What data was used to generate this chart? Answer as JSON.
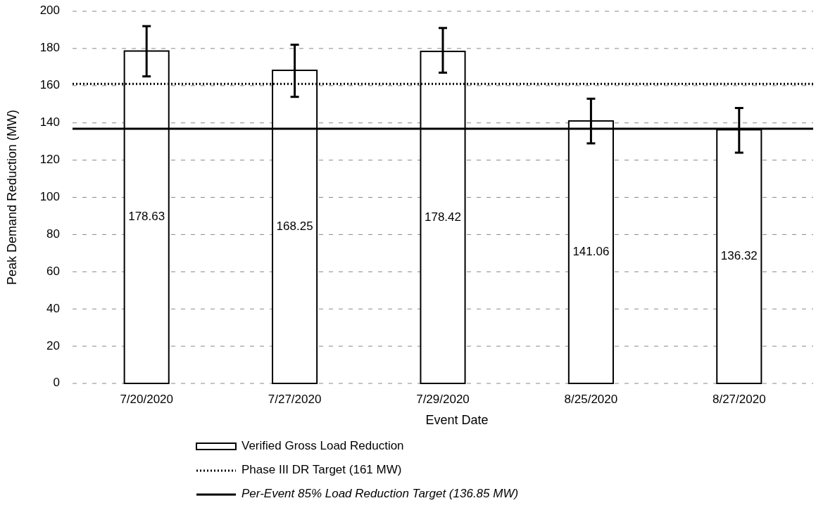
{
  "chart_data": {
    "type": "bar",
    "xlabel": "Event Date",
    "ylabel": "Peak Demand Reduction (MW)",
    "categories": [
      "7/20/2020",
      "7/27/2020",
      "7/29/2020",
      "8/25/2020",
      "8/27/2020"
    ],
    "series": [
      {
        "name": "Verified Gross Load Reduction",
        "color": "#ffffff",
        "values": [
          178.63,
          168.25,
          178.42,
          141.06,
          136.32
        ],
        "errors": [
          [
            165,
            192
          ],
          [
            154,
            182
          ],
          [
            167,
            191
          ],
          [
            129,
            153
          ],
          [
            124,
            148
          ]
        ]
      }
    ],
    "ylim": [
      0,
      200
    ],
    "yticks": [
      0,
      20,
      40,
      60,
      80,
      100,
      120,
      140,
      160,
      180,
      200
    ],
    "grid": "y",
    "legend": "bottom",
    "data_labels": true,
    "ref_lines": [
      {
        "axis": "y",
        "value": 161,
        "label": "Phase III DR Target (161 MW)",
        "line_style": "dotted",
        "color": "#000000"
      },
      {
        "axis": "y",
        "value": 136.85,
        "label": "Per-Event 85% Load Reduction Target (136.85 MW)",
        "line_style": "solid",
        "color": "#000000"
      }
    ]
  }
}
